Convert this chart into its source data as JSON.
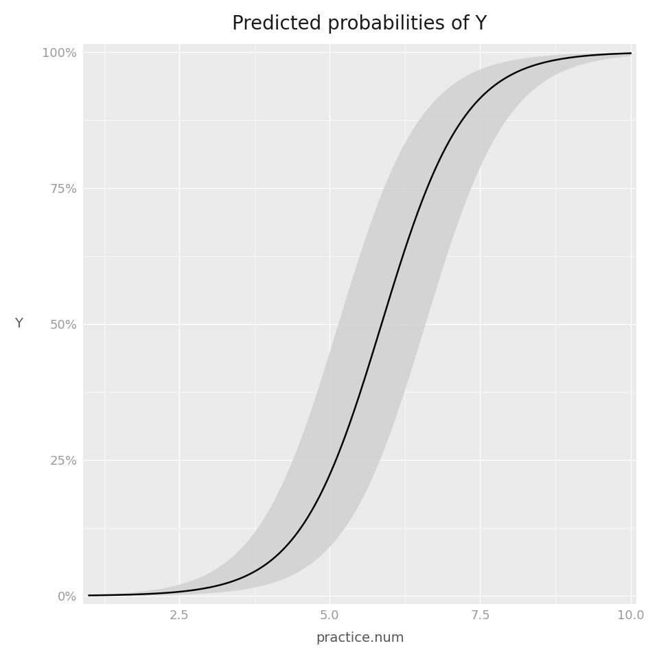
{
  "title": "Predicted probabilities of Y",
  "xlabel": "practice.num",
  "ylabel": "Y",
  "x_min": 1.0,
  "x_max": 10.0,
  "y_min": 0.0,
  "y_max": 1.0,
  "x_ticks": [
    2.5,
    5.0,
    7.5,
    10.0
  ],
  "y_ticks": [
    0.0,
    0.25,
    0.5,
    0.75,
    1.0
  ],
  "y_tick_labels": [
    "0%",
    "25%",
    "50%",
    "75%",
    "100%"
  ],
  "logistic_intercept": -8.5,
  "logistic_slope": 1.45,
  "ci_se": 1.05,
  "line_color": "#000000",
  "ci_color": "#d0d0d0",
  "ci_alpha": 0.85,
  "background_color": "#ffffff",
  "panel_background": "#ebebeb",
  "grid_color": "#ffffff",
  "title_fontsize": 20,
  "axis_label_fontsize": 14,
  "tick_label_fontsize": 13,
  "tick_label_color": "#999999",
  "axis_label_color": "#555555",
  "title_color": "#1a1a1a"
}
